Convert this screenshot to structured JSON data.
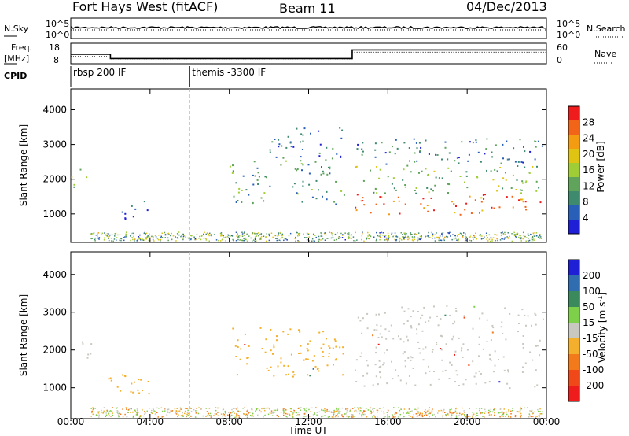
{
  "header": {
    "station": "Fort Hays West (fitACF)",
    "beam": "Beam 11",
    "date": "04/Dec/2013"
  },
  "sky_panel": {
    "left_label": "N.Sky",
    "right_label": "N.Search",
    "left_ticks": [
      "10^5",
      "10^0"
    ],
    "right_ticks": [
      "10^5",
      "10^0"
    ]
  },
  "freq_panel": {
    "left_label_1": "Freq.",
    "left_label_2": "[MHz]",
    "right_label": "Nave",
    "left_ticks": [
      "18",
      "8"
    ],
    "right_ticks": [
      "60",
      "0"
    ],
    "freq_steps": [
      {
        "start_hour": 0,
        "end_hour": 2,
        "mhz": 13.5
      },
      {
        "start_hour": 2,
        "end_hour": 14.2,
        "mhz": 11
      },
      {
        "start_hour": 14.2,
        "end_hour": 24,
        "mhz": 16
      }
    ],
    "nave_steps": [
      {
        "start_hour": 0,
        "end_hour": 2,
        "value": 25
      },
      {
        "start_hour": 2,
        "end_hour": 14.2,
        "value": 17
      },
      {
        "start_hour": 14.2,
        "end_hour": 24,
        "value": 40
      }
    ]
  },
  "cpid": {
    "label": "CPID",
    "modes": [
      {
        "start_hour": 0,
        "text": "rbsp 200 IF"
      },
      {
        "start_hour": 6,
        "text": "themis -3300 IF"
      }
    ]
  },
  "chart_data": [
    {
      "type": "heatmap",
      "panel": "power",
      "ylabel": "Slant Range [km]",
      "ylim": [
        180,
        4600
      ],
      "y_ticks": [
        1000,
        2000,
        3000,
        4000
      ],
      "xlim": [
        0,
        24
      ],
      "colorbar_label": "Power [dB]",
      "colorbar_ticks": [
        4,
        8,
        12,
        16,
        20,
        24,
        28
      ],
      "colorbar_range": [
        0,
        32
      ],
      "palette": [
        "#1f1fd6",
        "#2a5fb8",
        "#3e8a6e",
        "#5fa45a",
        "#9fcd35",
        "#e0c414",
        "#f39c12",
        "#f26418",
        "#ee1c1c"
      ],
      "regions": [
        {
          "hours": [
            0,
            1
          ],
          "ranges": [
            1750,
            2300
          ],
          "power": 14
        },
        {
          "hours": [
            1.8,
            4
          ],
          "ranges": [
            850,
            1400
          ],
          "power": 6
        },
        {
          "hours": [
            8,
            13.8
          ],
          "ranges": [
            1300,
            2600
          ],
          "power": 10
        },
        {
          "hours": [
            10,
            13.8
          ],
          "ranges": [
            2600,
            3500
          ],
          "power": 6
        },
        {
          "hours": [
            14.3,
            23.8
          ],
          "ranges": [
            1000,
            1600
          ],
          "power": 27
        },
        {
          "hours": [
            14.3,
            23.8
          ],
          "ranges": [
            1600,
            2400
          ],
          "power": 14
        },
        {
          "hours": [
            14.3,
            23.8
          ],
          "ranges": [
            2400,
            3200
          ],
          "power": 7
        }
      ]
    },
    {
      "type": "heatmap",
      "panel": "velocity",
      "ylabel": "Slant Range [km]",
      "xlabel": "Time UT",
      "ylim": [
        180,
        4600
      ],
      "y_ticks": [
        1000,
        2000,
        3000,
        4000
      ],
      "xlim": [
        0,
        24
      ],
      "x_ticks": [
        "00:00",
        "04:00",
        "08:00",
        "12:00",
        "16:00",
        "20:00",
        "00:00"
      ],
      "colorbar_label": "Velocity [m s",
      "colorbar_label_sup": "-1",
      "colorbar_label_end": "]",
      "colorbar_ticks": [
        "200",
        "100",
        "50",
        "15",
        "-15",
        "-50",
        "-100",
        "-200"
      ],
      "palette": [
        "#1f1fd6",
        "#2f6db0",
        "#3a8a5e",
        "#7ed04a",
        "#c8c8c0",
        "#f4b02c",
        "#f27a1a",
        "#f04818",
        "#ee1c1c"
      ],
      "regions": [
        {
          "hours": [
            0,
            1
          ],
          "ranges": [
            1750,
            2300
          ],
          "velocity": 0
        },
        {
          "hours": [
            1.8,
            4
          ],
          "ranges": [
            850,
            1400
          ],
          "velocity": -60
        },
        {
          "hours": [
            8,
            13.8
          ],
          "ranges": [
            1300,
            2600
          ],
          "velocity": -50
        },
        {
          "hours": [
            14.3,
            23.8
          ],
          "ranges": [
            1000,
            2400
          ],
          "velocity": 0
        },
        {
          "hours": [
            14.3,
            23.8
          ],
          "ranges": [
            2400,
            3200
          ],
          "velocity": 0
        }
      ]
    }
  ]
}
